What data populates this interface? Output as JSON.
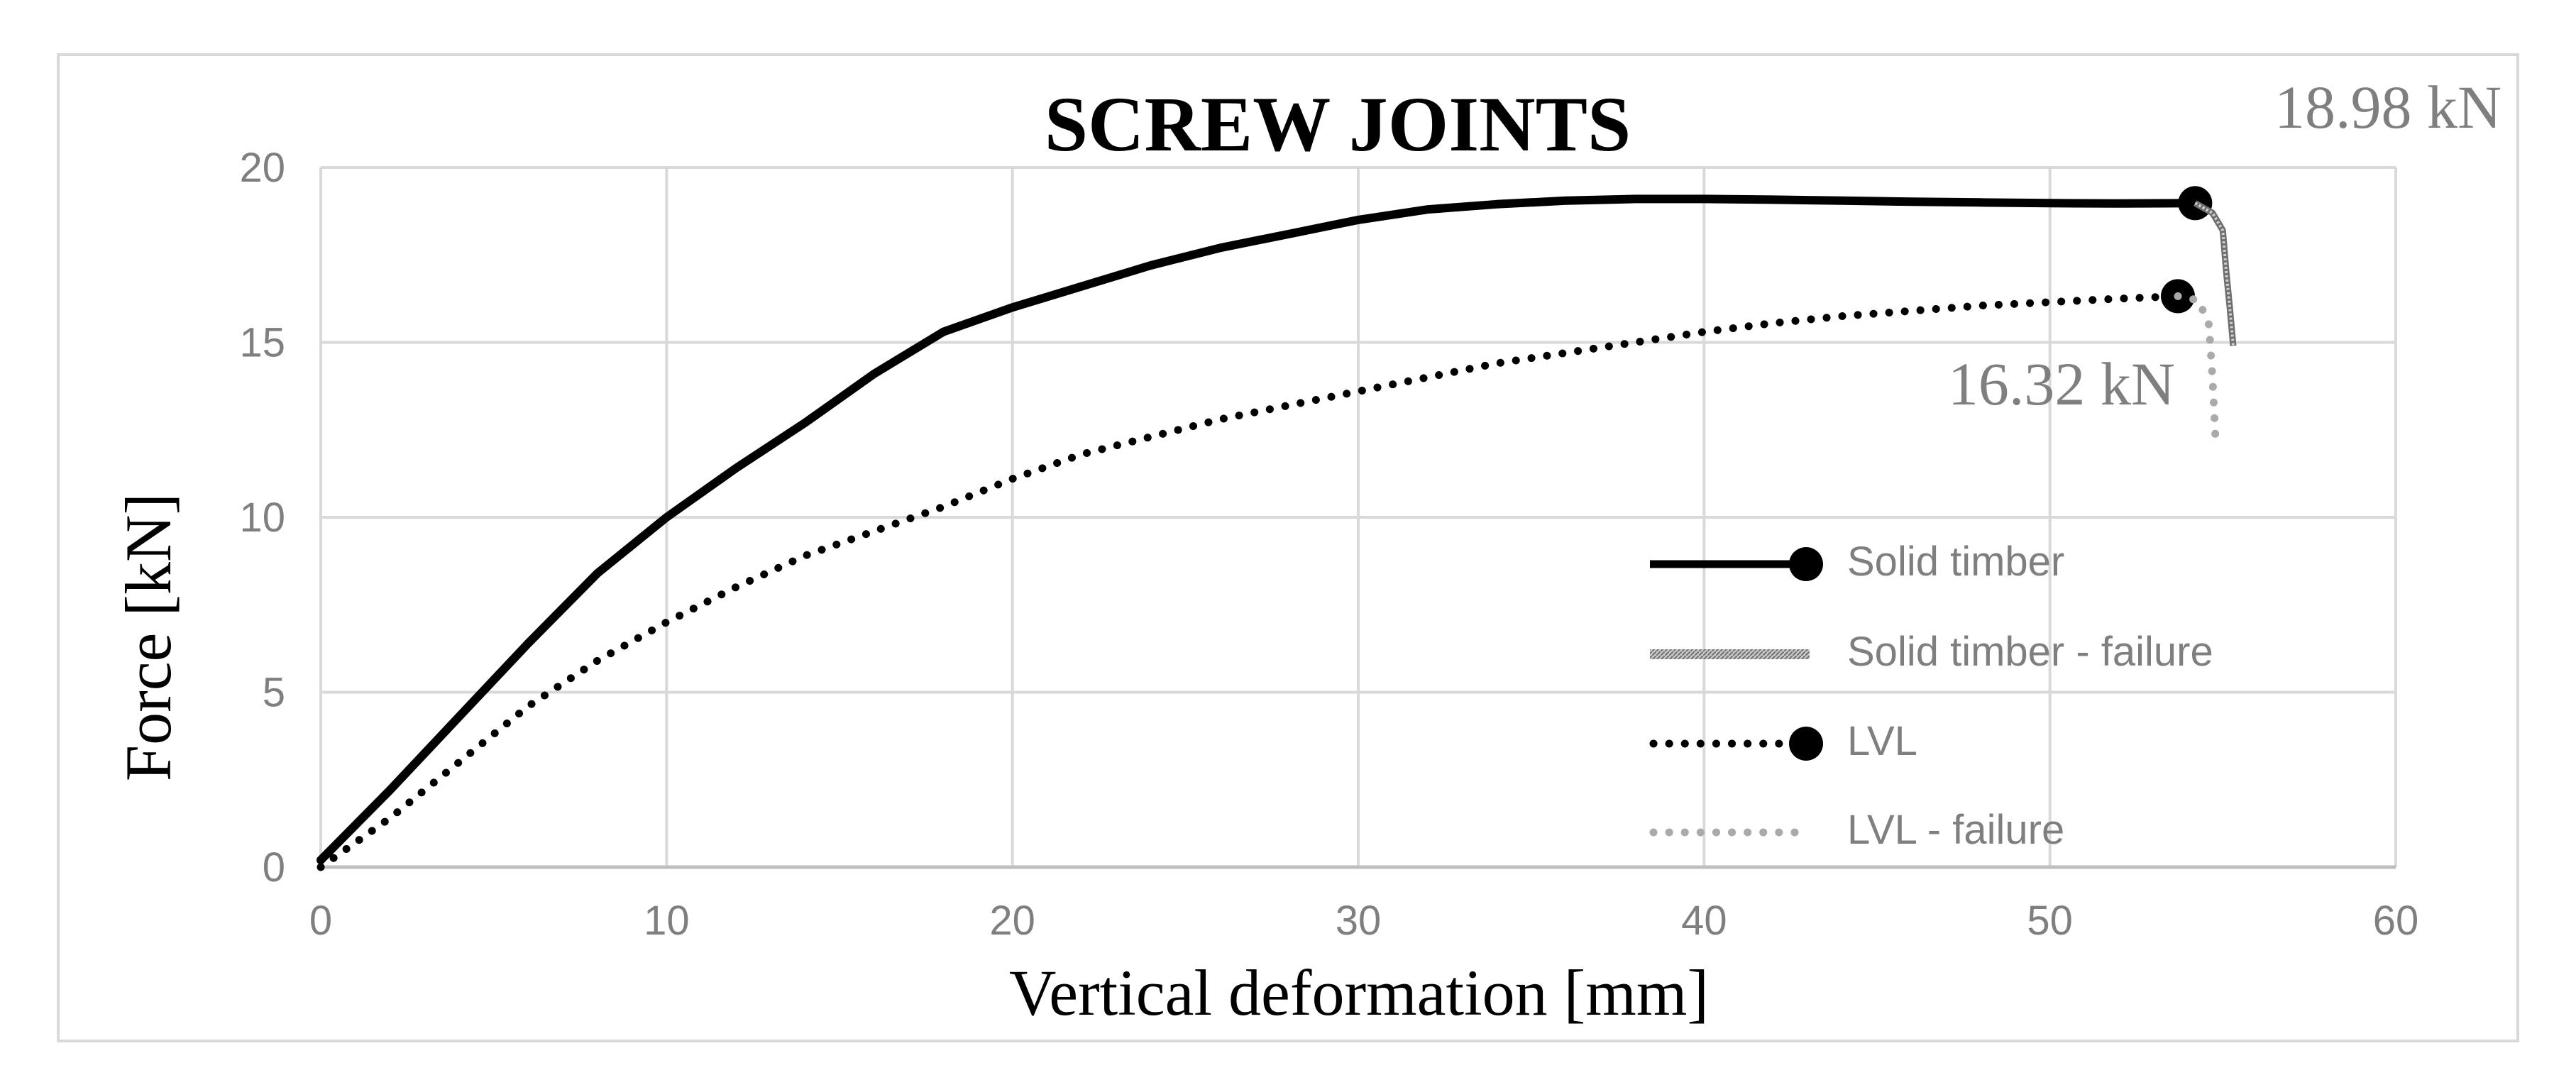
{
  "chart_data": {
    "type": "line",
    "title": "SCREW JOINTS",
    "xlabel": "Vertical deformation [mm]",
    "ylabel": "Force [kN]",
    "xlim": [
      0,
      60
    ],
    "ylim": [
      0,
      20
    ],
    "x_ticks": [
      "0",
      "10",
      "20",
      "30",
      "40",
      "50",
      "60"
    ],
    "y_ticks": [
      "0",
      "5",
      "10",
      "15",
      "20"
    ],
    "grid": true,
    "legend_position": "right",
    "annotations": [
      "18.98 kN",
      "16.32 kN"
    ],
    "series": [
      {
        "name": "Solid timber",
        "style": "solid",
        "color": "#000000",
        "marker_end": true,
        "x": [
          0,
          2,
          4,
          6,
          8,
          10,
          12,
          14,
          16,
          18,
          20,
          22,
          24,
          26,
          28,
          30,
          32,
          34,
          36,
          38,
          40,
          42,
          44,
          46,
          48,
          50,
          52,
          54.2
        ],
        "y": [
          0.2,
          2.2,
          4.3,
          6.4,
          8.4,
          10.0,
          11.4,
          12.7,
          14.1,
          15.3,
          16.0,
          16.6,
          17.2,
          17.7,
          18.1,
          18.5,
          18.8,
          18.95,
          19.05,
          19.1,
          19.1,
          19.08,
          19.05,
          19.02,
          19.0,
          18.98,
          18.97,
          18.98
        ]
      },
      {
        "name": "Solid timber - failure",
        "style": "hatched",
        "color": "#9a9a9a",
        "x": [
          54.2,
          54.7,
          55.0,
          55.1,
          55.2,
          55.3
        ],
        "y": [
          18.98,
          18.7,
          18.2,
          17.0,
          16.0,
          14.9
        ]
      },
      {
        "name": "LVL",
        "style": "dotted",
        "color": "#000000",
        "marker_end": true,
        "x": [
          0,
          2,
          4,
          6,
          8,
          10,
          12,
          14,
          16,
          18,
          20,
          22,
          24,
          26,
          28,
          30,
          32,
          34,
          36,
          38,
          40,
          42,
          44,
          46,
          48,
          50,
          52,
          53.7
        ],
        "y": [
          0.0,
          1.4,
          3.0,
          4.6,
          5.9,
          7.0,
          8.0,
          8.9,
          9.6,
          10.3,
          11.1,
          11.8,
          12.3,
          12.8,
          13.2,
          13.6,
          14.0,
          14.4,
          14.7,
          15.0,
          15.3,
          15.55,
          15.75,
          15.9,
          16.05,
          16.15,
          16.25,
          16.32
        ]
      },
      {
        "name": "LVL - failure",
        "style": "dotted",
        "color": "#aaaaaa",
        "x": [
          53.7,
          54.3,
          54.6,
          54.7,
          54.8
        ],
        "y": [
          16.32,
          16.2,
          15.5,
          14.0,
          12.0
        ]
      }
    ]
  }
}
